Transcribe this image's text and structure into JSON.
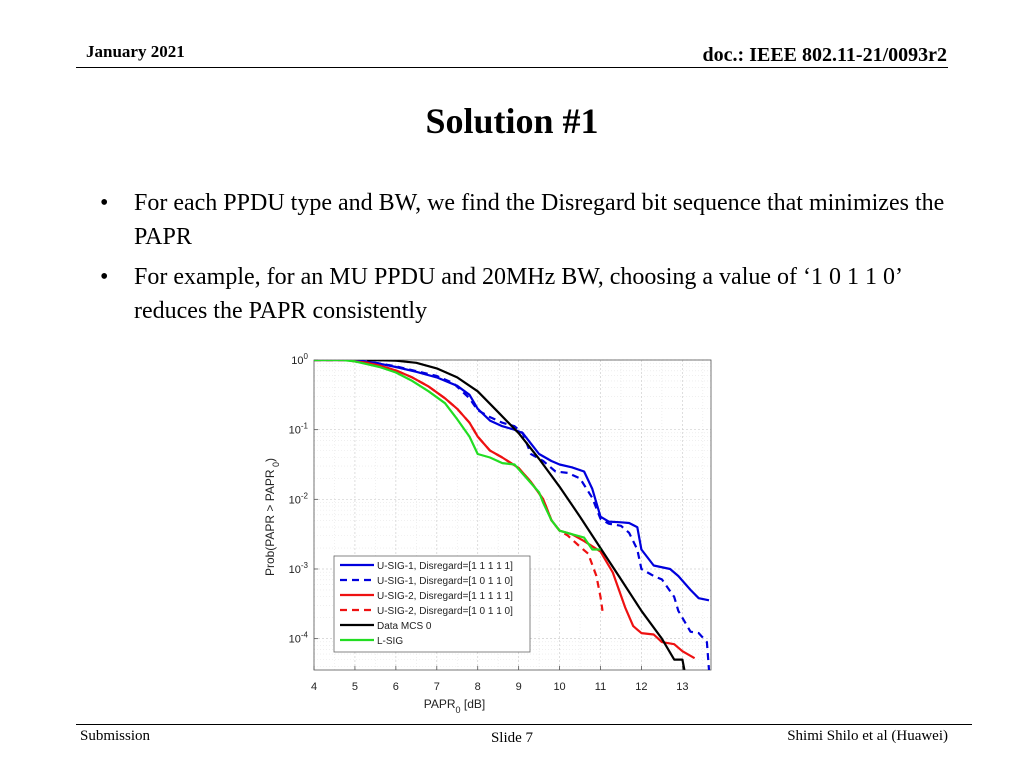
{
  "header": {
    "date": "January 2021",
    "doc": "doc.: IEEE 802.11-21/0093r2"
  },
  "title": "Solution #1",
  "bullets": [
    {
      "text": "For each PPDU type and BW, we find the Disregard bit sequence that minimizes the PAPR"
    },
    {
      "text": "For example, for an MU PPDU and 20MHz BW, choosing a value of ‘1 0 1 1 0’ reduces the PAPR consistently"
    }
  ],
  "bullet_symbol": "•",
  "footer": {
    "left": "Submission",
    "center": "Slide 7",
    "right": "Shimi Shilo et al (Huawei)"
  },
  "chart_data": {
    "type": "line",
    "title": "",
    "xlabel": "PAPR",
    "xlabel_sub": "0",
    "xlabel_suffix": "[dB]",
    "ylabel": "Prob(PAPR > PAPR",
    "ylabel_sub": "0",
    "ylabel_suffix": ")",
    "yscale": "log",
    "xlim": [
      4,
      13.7
    ],
    "ylim_exp": [
      -4.45,
      0
    ],
    "x_ticks": [
      "4",
      "5",
      "6",
      "7",
      "8",
      "9",
      "10",
      "11",
      "12",
      "13"
    ],
    "y_ticks": [
      {
        "base": "10",
        "exp": "0",
        "value": 0
      },
      {
        "base": "10",
        "exp": "-1",
        "value": -1
      },
      {
        "base": "10",
        "exp": "-2",
        "value": -2
      },
      {
        "base": "10",
        "exp": "-3",
        "value": -3
      },
      {
        "base": "10",
        "exp": "-4",
        "value": -4
      }
    ],
    "grid": true,
    "legend_position": "bottom-left",
    "series": [
      {
        "name": "U-SIG-1, Disregard=[1 1 1 1 1]",
        "color": "#0000dd",
        "dash": "solid",
        "x": [
          4.0,
          5.0,
          5.5,
          6.0,
          6.5,
          7.0,
          7.5,
          7.8,
          8.0,
          8.3,
          8.6,
          8.9,
          9.1,
          9.3,
          9.5,
          9.8,
          10.0,
          10.3,
          10.6,
          10.8,
          11.0,
          11.2,
          11.5,
          11.7,
          11.9,
          12.0,
          12.3,
          12.7,
          12.9,
          13.2,
          13.4,
          13.65
        ],
        "y": [
          0,
          0,
          -0.04,
          -0.1,
          -0.17,
          -0.25,
          -0.37,
          -0.5,
          -0.7,
          -0.87,
          -0.95,
          -1.0,
          -1.05,
          -1.2,
          -1.35,
          -1.45,
          -1.5,
          -1.54,
          -1.6,
          -1.85,
          -2.25,
          -2.32,
          -2.33,
          -2.34,
          -2.4,
          -2.72,
          -2.95,
          -3.0,
          -3.1,
          -3.3,
          -3.42,
          -3.45
        ]
      },
      {
        "name": "U-SIG-1, Disregard=[1 0 1 1 0]",
        "color": "#0000dd",
        "dash": "dashed",
        "x": [
          4.0,
          5.0,
          5.5,
          6.0,
          6.5,
          7.0,
          7.4,
          7.8,
          8.0,
          8.3,
          8.6,
          8.9,
          9.1,
          9.3,
          9.6,
          9.9,
          10.2,
          10.5,
          10.8,
          11.0,
          11.2,
          11.5,
          11.7,
          11.9,
          12.0,
          12.3,
          12.5,
          12.8,
          12.9,
          13.2,
          13.4,
          13.6,
          13.65
        ],
        "y": [
          0,
          0,
          -0.04,
          -0.09,
          -0.16,
          -0.23,
          -0.33,
          -0.55,
          -0.72,
          -0.82,
          -0.9,
          -0.95,
          -1.05,
          -1.35,
          -1.45,
          -1.6,
          -1.62,
          -1.7,
          -1.98,
          -2.28,
          -2.35,
          -2.38,
          -2.48,
          -2.72,
          -3.0,
          -3.1,
          -3.15,
          -3.4,
          -3.6,
          -3.9,
          -3.92,
          -4.05,
          -4.45
        ]
      },
      {
        "name": "U-SIG-2, Disregard=[1 1 1 1 1]",
        "color": "#ee1111",
        "dash": "solid",
        "x": [
          4.0,
          4.8,
          5.0,
          5.3,
          5.6,
          6.0,
          6.4,
          6.8,
          7.2,
          7.5,
          7.8,
          8.0,
          8.3,
          8.6,
          9.0,
          9.3,
          9.6,
          9.8,
          10.0,
          10.3,
          10.6,
          11.0,
          11.3,
          11.6,
          11.8,
          12.0,
          12.3,
          12.5,
          12.8,
          13.0,
          13.3
        ],
        "y": [
          0,
          0,
          -0.02,
          -0.04,
          -0.08,
          -0.15,
          -0.25,
          -0.38,
          -0.55,
          -0.7,
          -0.9,
          -1.1,
          -1.3,
          -1.4,
          -1.55,
          -1.75,
          -2.0,
          -2.3,
          -2.45,
          -2.5,
          -2.6,
          -2.75,
          -3.05,
          -3.55,
          -3.82,
          -3.92,
          -3.94,
          -4.05,
          -4.08,
          -4.18,
          -4.28
        ]
      },
      {
        "name": "U-SIG-2, Disregard=[1 0 1 1 0]",
        "color": "#ee1111",
        "dash": "dashed",
        "x": [
          4.0,
          4.8,
          5.0,
          5.3,
          5.6,
          6.0,
          6.4,
          6.8,
          7.2,
          7.5,
          7.8,
          8.0,
          8.3,
          8.6,
          9.0,
          9.3,
          9.6,
          9.8,
          10.0,
          10.2,
          10.5,
          10.7,
          10.9,
          11.0,
          11.05
        ],
        "y": [
          0,
          0,
          -0.02,
          -0.04,
          -0.08,
          -0.15,
          -0.25,
          -0.38,
          -0.55,
          -0.7,
          -0.9,
          -1.1,
          -1.3,
          -1.4,
          -1.55,
          -1.75,
          -2.0,
          -2.3,
          -2.45,
          -2.52,
          -2.68,
          -2.78,
          -3.1,
          -3.4,
          -3.6
        ]
      },
      {
        "name": "Data MCS 0",
        "color": "#000000",
        "dash": "solid",
        "x": [
          5.3,
          6.0,
          6.5,
          7.0,
          7.5,
          8.0,
          8.5,
          9.0,
          9.5,
          10.0,
          10.5,
          11.0,
          11.5,
          12.0,
          12.5,
          12.8,
          13.0,
          13.05
        ],
        "y": [
          0,
          -0.01,
          -0.04,
          -0.12,
          -0.25,
          -0.45,
          -0.75,
          -1.05,
          -1.42,
          -1.82,
          -2.25,
          -2.7,
          -3.15,
          -3.6,
          -4.0,
          -4.3,
          -4.3,
          -4.45
        ]
      },
      {
        "name": "L-SIG",
        "color": "#22dd22",
        "dash": "solid",
        "x": [
          4.0,
          4.7,
          5.0,
          5.3,
          5.6,
          6.0,
          6.4,
          6.8,
          7.2,
          7.5,
          7.8,
          8.0,
          8.3,
          8.6,
          8.9,
          9.2,
          9.5,
          9.6,
          9.8,
          10.0,
          10.3,
          10.6,
          10.8,
          11.0
        ],
        "y": [
          0,
          0,
          -0.02,
          -0.06,
          -0.1,
          -0.18,
          -0.3,
          -0.45,
          -0.62,
          -0.85,
          -1.1,
          -1.35,
          -1.4,
          -1.48,
          -1.5,
          -1.7,
          -1.9,
          -2.05,
          -2.3,
          -2.45,
          -2.5,
          -2.55,
          -2.72,
          -2.72
        ]
      }
    ]
  }
}
